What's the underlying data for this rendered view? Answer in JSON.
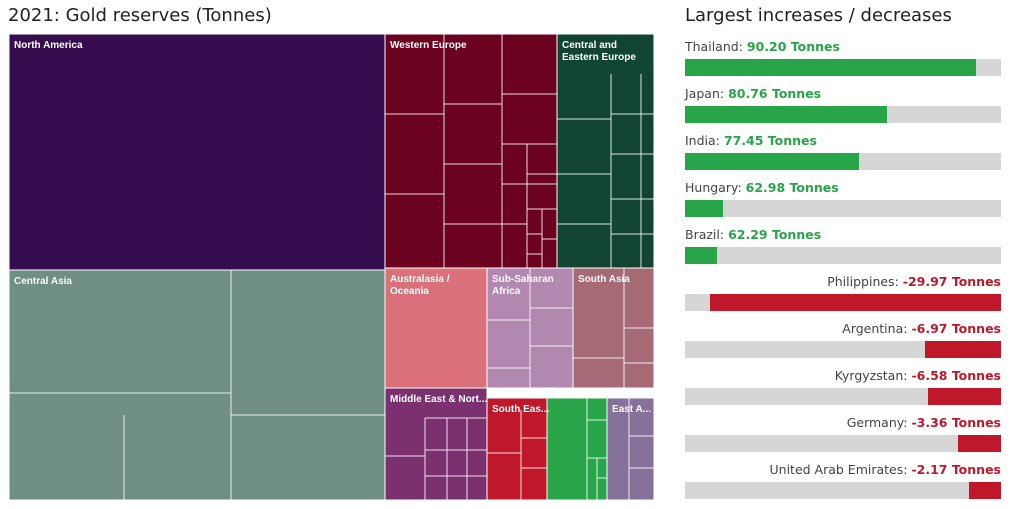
{
  "treemap_title": "2021: Gold reserves (Tonnes)",
  "changes_title": "Largest increases / decreases",
  "colors": {
    "positive": "#27a548",
    "negative": "#c0182b",
    "track": "#d6d6d6"
  },
  "chart_data": [
    {
      "type": "treemap",
      "title": "2021: Gold reserves (Tonnes)",
      "regions": [
        {
          "name": "North America",
          "color": "#350d4f"
        },
        {
          "name": "Western Europe",
          "color": "#6b0220"
        },
        {
          "name": "Central and Eastern Europe",
          "color": "#114433"
        },
        {
          "name": "Central Asia",
          "color": "#6f8f82"
        },
        {
          "name": "Australasia / Oceania",
          "color": "#d9707a"
        },
        {
          "name": "Sub-Saharan Africa",
          "color": "#b287b0"
        },
        {
          "name": "South Asia",
          "color": "#a66a76"
        },
        {
          "name": "Middle East & Nort...",
          "color": "#7b306f"
        },
        {
          "name": "South Eas...",
          "color": "#c0182b"
        },
        {
          "name": "East A...",
          "color": "#857199"
        }
      ],
      "extra_tile_color": "#27a548"
    },
    {
      "type": "bar",
      "title": "Largest increases / decreases",
      "unit": "Tonnes",
      "items": [
        {
          "country": "Thailand:",
          "value": 90.2,
          "value_label": "90.20 Tonnes",
          "fill": 0.92
        },
        {
          "country": "Japan:",
          "value": 80.76,
          "value_label": "80.76 Tonnes",
          "fill": 0.64
        },
        {
          "country": "India:",
          "value": 77.45,
          "value_label": "77.45 Tonnes",
          "fill": 0.55
        },
        {
          "country": "Hungary:",
          "value": 62.98,
          "value_label": "62.98 Tonnes",
          "fill": 0.12
        },
        {
          "country": "Brazil:",
          "value": 62.29,
          "value_label": "62.29 Tonnes",
          "fill": 0.1
        },
        {
          "country": "Philippines:",
          "value": -29.97,
          "value_label": "-29.97 Tonnes",
          "fill": 0.92
        },
        {
          "country": "Argentina:",
          "value": -6.97,
          "value_label": "-6.97 Tonnes",
          "fill": 0.24
        },
        {
          "country": "Kyrgyzstan:",
          "value": -6.58,
          "value_label": "-6.58 Tonnes",
          "fill": 0.23
        },
        {
          "country": "Germany:",
          "value": -3.36,
          "value_label": "-3.36 Tonnes",
          "fill": 0.135
        },
        {
          "country": "United Arab Emirates:",
          "value": -2.17,
          "value_label": "-2.17 Tonnes",
          "fill": 0.1
        }
      ]
    }
  ]
}
